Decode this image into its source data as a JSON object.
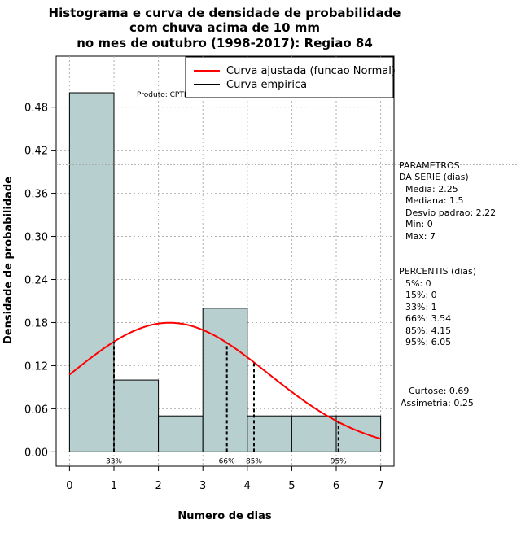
{
  "chart_data": {
    "type": "bar",
    "title_lines": [
      "Histograma e curva de densidade de probabilidade",
      "com chuva acima de 10 mm",
      "no mes de outubro (1998-2017): Regiao 84"
    ],
    "xlabel": "Numero de dias",
    "ylabel": "Densidade de probabilidade",
    "xlim": [
      -0.3,
      7.3
    ],
    "ylim": [
      -0.02,
      0.551
    ],
    "x_ticks": [
      "0",
      "1",
      "2",
      "3",
      "4",
      "5",
      "6",
      "7"
    ],
    "y_ticks": [
      "0.00",
      "0.06",
      "0.12",
      "0.18",
      "0.24",
      "0.30",
      "0.36",
      "0.42",
      "0.48"
    ],
    "bins": [
      {
        "start": 0,
        "end": 1,
        "density": 0.5
      },
      {
        "start": 1,
        "end": 2,
        "density": 0.1
      },
      {
        "start": 2,
        "end": 3,
        "density": 0.05
      },
      {
        "start": 3,
        "end": 4,
        "density": 0.2
      },
      {
        "start": 4,
        "end": 5,
        "density": 0.05
      },
      {
        "start": 5,
        "end": 6,
        "density": 0.05
      },
      {
        "start": 6,
        "end": 7,
        "density": 0.05
      }
    ],
    "normal_curve": {
      "mean": 2.25,
      "sd": 2.22,
      "x_range": [
        0,
        7
      ]
    },
    "percentile_lines": [
      {
        "label": "33%",
        "x": 1
      },
      {
        "label": "66%",
        "x": 3.54
      },
      {
        "label": "85%",
        "x": 4.15
      },
      {
        "label": "95%",
        "x": 6.05
      }
    ],
    "reference_hline": 0.4,
    "grid": true,
    "legend_position": "top-right",
    "legend": [
      {
        "label": "Curva ajustada (funcao Normal)",
        "color": "#ff0000"
      },
      {
        "label": "Curva empirica",
        "color": "#000000"
      }
    ],
    "annotation": "Produto: CPTEC/INPE",
    "colors": {
      "bar_fill": "#b8cfcf",
      "bar_stroke": "#000000",
      "curve": "#ff0000",
      "grid": "#b0b0b0"
    }
  },
  "side_panel": {
    "parametros": [
      "PARAMETROS",
      "DA SERIE (dias)",
      "Media: 2.25",
      "Mediana: 1.5",
      "Desvio padrao: 2.22",
      "Min: 0",
      "Max: 7"
    ],
    "percentis": [
      "PERCENTIS (dias)",
      "5%: 0",
      "15%: 0",
      "33%: 1",
      "66%: 3.54",
      "85%: 4.15",
      "95%: 6.05"
    ],
    "shape": [
      "Curtose: 0.69",
      "Assimetria: 0.25"
    ]
  }
}
